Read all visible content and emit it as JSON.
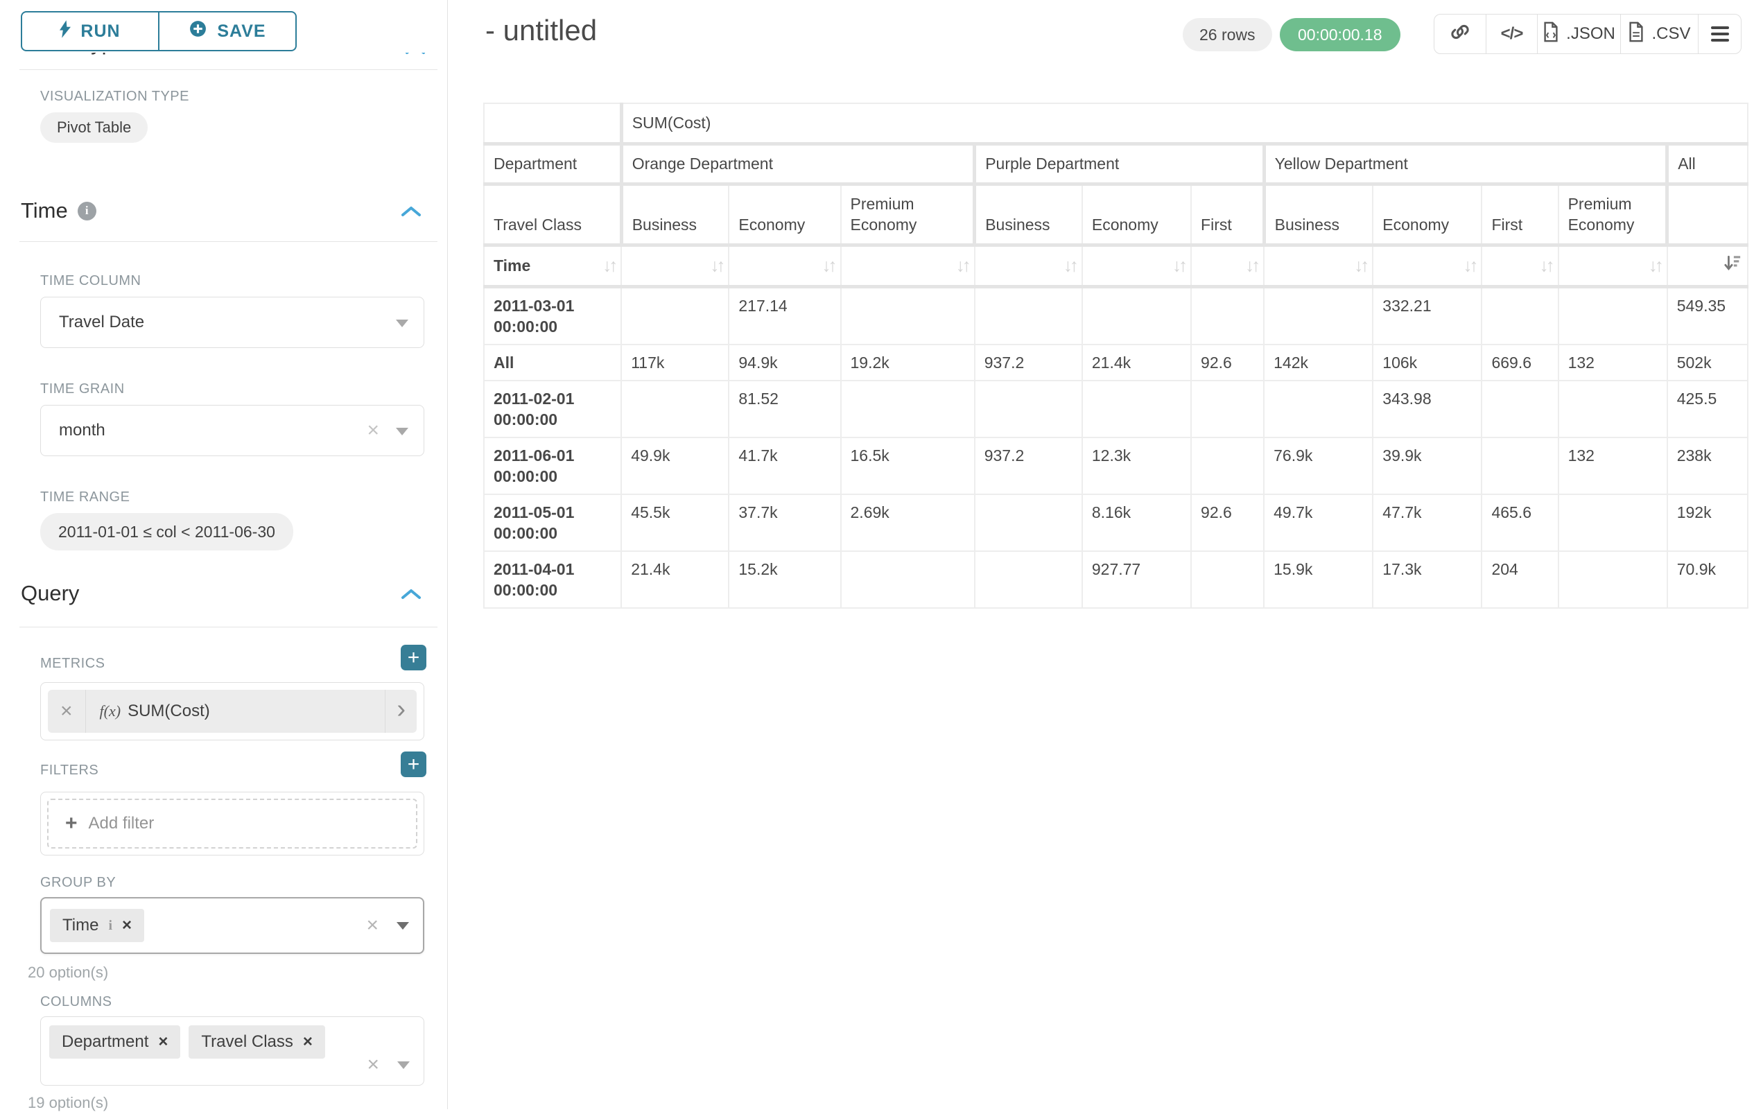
{
  "sidebar": {
    "run_label": "RUN",
    "save_label": "SAVE",
    "chart_type_heading": "Chart Type",
    "viz": {
      "label": "VISUALIZATION TYPE",
      "value": "Pivot Table"
    },
    "time": {
      "title": "Time",
      "time_column_label": "TIME COLUMN",
      "time_column_value": "Travel Date",
      "time_grain_label": "TIME GRAIN",
      "time_grain_value": "month",
      "time_range_label": "TIME RANGE",
      "time_range_value": "2011-01-01 ≤ col < 2011-06-30"
    },
    "query": {
      "title": "Query",
      "metrics_label": "METRICS",
      "metric_fx": "f(x)",
      "metric_value": "SUM(Cost)",
      "filters_label": "FILTERS",
      "add_filter_label": "Add filter",
      "group_by_label": "GROUP BY",
      "group_by_tags": [
        "Time"
      ],
      "group_by_hint": "20 option(s)",
      "columns_label": "COLUMNS",
      "columns_tags": [
        "Department",
        "Travel Class"
      ],
      "columns_hint": "19 option(s)"
    }
  },
  "header": {
    "title": "- untitled",
    "row_count": "26 rows",
    "timer": "00:00:00.18",
    "code_glyph": "</>",
    "export_json_label": ".JSON",
    "export_csv_label": ".CSV"
  },
  "icons": {
    "run": "bolt-icon",
    "save": "plus-circle-icon",
    "section_collapse": "chevron-up-icon",
    "info": "info-icon",
    "share": "link-icon",
    "view_query": "code-icon",
    "menu": "menu-icon",
    "sort": "sort-arrows-icon",
    "sort_active": "sort-desc-icon"
  },
  "colors": {
    "accent_teal": "#2C7D99",
    "plus_button": "#377E96",
    "collapse_chevron": "#47A7D8",
    "timer_green": "#6FBE8E",
    "pill_gray": "#F0F0F0",
    "border": "#E0E0E0"
  },
  "pivot": {
    "metric_header": "SUM(Cost)",
    "col_dim_1": "Department",
    "col_dim_2": "Travel Class",
    "row_dim": "Time",
    "groups": [
      {
        "label": "Orange Department",
        "cols": [
          "Business",
          "Economy",
          "Premium Economy"
        ]
      },
      {
        "label": "Purple Department",
        "cols": [
          "Business",
          "Economy",
          "First"
        ]
      },
      {
        "label": "Yellow Department",
        "cols": [
          "Business",
          "Economy",
          "First",
          "Premium Economy"
        ]
      },
      {
        "label": "All",
        "cols": [
          ""
        ]
      }
    ],
    "rows": [
      {
        "label": "2011-03-01 00:00:00",
        "values": [
          "",
          "217.14",
          "",
          "",
          "",
          "",
          "",
          "332.21",
          "",
          "",
          "549.35"
        ]
      },
      {
        "label": "All",
        "values": [
          "117k",
          "94.9k",
          "19.2k",
          "937.2",
          "21.4k",
          "92.6",
          "142k",
          "106k",
          "669.6",
          "132",
          "502k"
        ]
      },
      {
        "label": "2011-02-01 00:00:00",
        "values": [
          "",
          "81.52",
          "",
          "",
          "",
          "",
          "",
          "343.98",
          "",
          "",
          "425.5"
        ]
      },
      {
        "label": "2011-06-01 00:00:00",
        "values": [
          "49.9k",
          "41.7k",
          "16.5k",
          "937.2",
          "12.3k",
          "",
          "76.9k",
          "39.9k",
          "",
          "132",
          "238k"
        ]
      },
      {
        "label": "2011-05-01 00:00:00",
        "values": [
          "45.5k",
          "37.7k",
          "2.69k",
          "",
          "8.16k",
          "92.6",
          "49.7k",
          "47.7k",
          "465.6",
          "",
          "192k"
        ]
      },
      {
        "label": "2011-04-01 00:00:00",
        "values": [
          "21.4k",
          "15.2k",
          "",
          "",
          "927.77",
          "",
          "15.9k",
          "17.3k",
          "204",
          "",
          "70.9k"
        ]
      }
    ]
  }
}
